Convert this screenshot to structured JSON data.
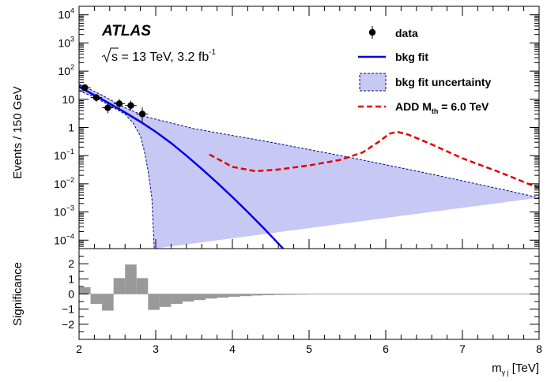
{
  "chart_data": [
    {
      "type": "line",
      "panel": "main",
      "ylabel": "Events / 150 GeV",
      "yscale": "log",
      "xlim": [
        2,
        8
      ],
      "ylim": [
        5e-05,
        20000
      ],
      "y_ticks": [
        {
          "v": 0.0001,
          "base": "10",
          "exp": "−4"
        },
        {
          "v": 0.001,
          "base": "10",
          "exp": "−3"
        },
        {
          "v": 0.01,
          "base": "10",
          "exp": "−2"
        },
        {
          "v": 0.1,
          "base": "10",
          "exp": "−1"
        },
        {
          "v": 1,
          "base": "1",
          "exp": ""
        },
        {
          "v": 10,
          "base": "10",
          "exp": ""
        },
        {
          "v": 100,
          "base": "10",
          "exp": "2"
        },
        {
          "v": 1000,
          "base": "10",
          "exp": "3"
        },
        {
          "v": 10000,
          "base": "10",
          "exp": "4"
        }
      ],
      "experiment_label": "ATLAS",
      "energy_label": {
        "sqrt": "s",
        "rest": " = 13 TeV, 3.2 fb",
        "sup": "-1"
      },
      "legend": {
        "data": "data",
        "fit": "bkg fit",
        "unc": "bkg fit uncertainty",
        "signal_main": "ADD M",
        "signal_sub": "th",
        "signal_rest": " = 6.0 TeV"
      },
      "colors": {
        "data": "#000000",
        "fit": "#0000e6",
        "band_fill": "#c8c8f5",
        "band_edge": "#00008b",
        "signal": "#e60000"
      },
      "data_points": [
        {
          "x": 2.075,
          "y": 26,
          "ylo": 21,
          "yhi": 31
        },
        {
          "x": 2.225,
          "y": 11.5,
          "ylo": 8.3,
          "yhi": 15.5
        },
        {
          "x": 2.375,
          "y": 5,
          "ylo": 3.2,
          "yhi": 7.8
        },
        {
          "x": 2.525,
          "y": 7,
          "ylo": 4.8,
          "yhi": 10.2
        },
        {
          "x": 2.675,
          "y": 6,
          "ylo": 4.0,
          "yhi": 8.9
        },
        {
          "x": 2.825,
          "y": 3,
          "ylo": 1.6,
          "yhi": 5.2
        }
      ],
      "bkg_fit": [
        {
          "x": 2.0,
          "y": 28
        },
        {
          "x": 2.2,
          "y": 14
        },
        {
          "x": 2.4,
          "y": 7
        },
        {
          "x": 2.6,
          "y": 3.4
        },
        {
          "x": 2.8,
          "y": 1.6
        },
        {
          "x": 3.0,
          "y": 0.7
        },
        {
          "x": 3.2,
          "y": 0.28
        },
        {
          "x": 3.4,
          "y": 0.1
        },
        {
          "x": 3.6,
          "y": 0.034
        },
        {
          "x": 3.8,
          "y": 0.011
        },
        {
          "x": 4.0,
          "y": 0.0034
        },
        {
          "x": 4.2,
          "y": 0.001
        },
        {
          "x": 4.4,
          "y": 0.00028
        },
        {
          "x": 4.6,
          "y": 7.5e-05
        },
        {
          "x": 4.8,
          "y": 2e-05
        }
      ],
      "band_upper": [
        {
          "x": 2.0,
          "y": 35
        },
        {
          "x": 2.3,
          "y": 14
        },
        {
          "x": 2.6,
          "y": 5
        },
        {
          "x": 2.9,
          "y": 2.3
        },
        {
          "x": 3.5,
          "y": 0.9
        },
        {
          "x": 4.5,
          "y": 0.3
        },
        {
          "x": 5.5,
          "y": 0.09
        },
        {
          "x": 6.5,
          "y": 0.025
        },
        {
          "x": 7.5,
          "y": 0.0065
        },
        {
          "x": 8.0,
          "y": 0.0032
        }
      ],
      "band_lower": [
        {
          "x": 2.0,
          "y": 20
        },
        {
          "x": 2.2,
          "y": 12
        },
        {
          "x": 2.4,
          "y": 6
        },
        {
          "x": 2.6,
          "y": 3
        },
        {
          "x": 2.7,
          "y": 1.5
        },
        {
          "x": 2.8,
          "y": 0.5
        },
        {
          "x": 2.85,
          "y": 0.15
        },
        {
          "x": 2.9,
          "y": 0.03
        },
        {
          "x": 2.95,
          "y": 0.003
        },
        {
          "x": 2.97,
          "y": 0.0002
        },
        {
          "x": 2.98,
          "y": 5e-05
        }
      ],
      "signal_curve": [
        {
          "x": 3.7,
          "y": 0.11
        },
        {
          "x": 4.0,
          "y": 0.04
        },
        {
          "x": 4.3,
          "y": 0.028
        },
        {
          "x": 4.6,
          "y": 0.032
        },
        {
          "x": 5.0,
          "y": 0.045
        },
        {
          "x": 5.4,
          "y": 0.07
        },
        {
          "x": 5.7,
          "y": 0.13
        },
        {
          "x": 5.9,
          "y": 0.3
        },
        {
          "x": 6.05,
          "y": 0.6
        },
        {
          "x": 6.15,
          "y": 0.7
        },
        {
          "x": 6.3,
          "y": 0.55
        },
        {
          "x": 6.6,
          "y": 0.25
        },
        {
          "x": 7.0,
          "y": 0.08
        },
        {
          "x": 7.5,
          "y": 0.025
        },
        {
          "x": 7.9,
          "y": 0.009
        },
        {
          "x": 8.0,
          "y": 0.007
        }
      ]
    },
    {
      "type": "bar",
      "panel": "significance",
      "ylabel": "Significance",
      "xlabel": {
        "main": "m",
        "sub": "γ j",
        "unit": " [TeV]"
      },
      "xlim": [
        2,
        8
      ],
      "ylim": [
        -3,
        3
      ],
      "x_ticks": [
        "2",
        "3",
        "4",
        "5",
        "6",
        "7",
        "8"
      ],
      "y_ticks": [
        "−2",
        "−1",
        "0",
        "1",
        "2"
      ],
      "bar_color": "#999999",
      "bin_edges": [
        2.0,
        2.15,
        2.3,
        2.45,
        2.6,
        2.75,
        2.9,
        3.05,
        3.2,
        3.35,
        3.5,
        3.65,
        3.8,
        3.95,
        4.1,
        4.25,
        4.4,
        4.55,
        4.7,
        4.85,
        5.0,
        5.15,
        5.3,
        5.45,
        5.6,
        5.75,
        5.9,
        6.05,
        6.2,
        6.35,
        6.5,
        6.65,
        6.8,
        6.95,
        7.1,
        7.25,
        7.4,
        7.55,
        7.7,
        7.85,
        8.0
      ],
      "values": [
        0.45,
        -0.65,
        -1.1,
        1.05,
        1.95,
        1.05,
        -1.05,
        -0.85,
        -0.65,
        -0.5,
        -0.4,
        -0.3,
        -0.24,
        -0.18,
        -0.14,
        -0.1,
        -0.08,
        -0.06,
        -0.05,
        -0.04,
        -0.03,
        -0.025,
        -0.02,
        -0.015,
        -0.012,
        -0.01,
        -0.008,
        -0.006,
        -0.005,
        -0.004,
        -0.003,
        -0.003,
        -0.002,
        -0.002,
        -0.002,
        -0.001,
        -0.001,
        -0.001,
        -0.001,
        -0.001
      ]
    }
  ]
}
